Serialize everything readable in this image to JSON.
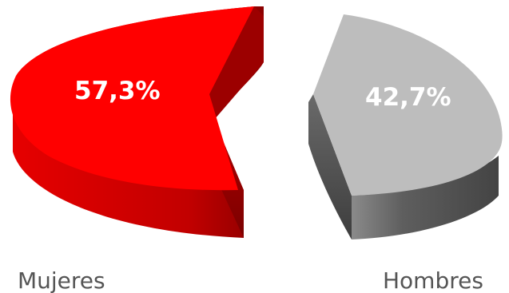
{
  "chart_data": {
    "type": "pie",
    "title": "",
    "categories": [
      "Mujeres",
      "Hombres"
    ],
    "values": [
      57.3,
      42.7
    ],
    "data_labels": [
      "57,3%",
      "42,7%"
    ],
    "colors": {
      "Mujeres": "#ff0000",
      "Hombres": "#bdbdbd"
    },
    "legend_position": "bottom"
  }
}
